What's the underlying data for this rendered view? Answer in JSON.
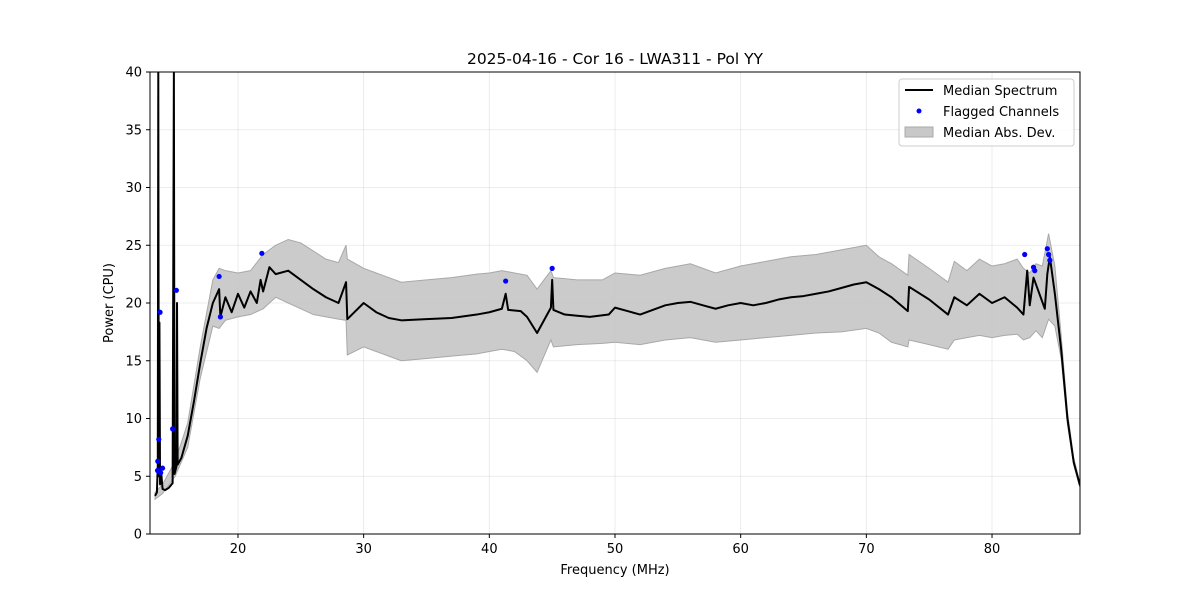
{
  "chart_data": {
    "type": "line",
    "title": "2025-04-16 - Cor 16 - LWA311 - Pol YY",
    "xlabel": "Frequency (MHz)",
    "ylabel": "Power (CPU)",
    "xlim": [
      13.0,
      87.0
    ],
    "ylim": [
      0,
      40
    ],
    "xticks": [
      20,
      30,
      40,
      50,
      60,
      70,
      80
    ],
    "yticks": [
      0,
      5,
      10,
      15,
      20,
      25,
      30,
      35,
      40
    ],
    "grid": true,
    "legend_position": "top-right",
    "legend": [
      "Median Spectrum",
      "Flagged Channels",
      "Median Abs. Dev."
    ],
    "series": [
      {
        "name": "Median Spectrum",
        "style": "line",
        "color": "#000000",
        "points": [
          [
            13.4,
            3.3
          ],
          [
            13.55,
            3.6
          ],
          [
            13.62,
            6.0
          ],
          [
            13.66,
            40.0
          ],
          [
            13.7,
            5.0
          ],
          [
            13.75,
            18.3
          ],
          [
            13.8,
            4.3
          ],
          [
            13.9,
            5.2
          ],
          [
            14.0,
            3.9
          ],
          [
            14.2,
            3.8
          ],
          [
            14.5,
            4.0
          ],
          [
            14.8,
            4.4
          ],
          [
            14.9,
            40.0
          ],
          [
            14.95,
            5.2
          ],
          [
            15.1,
            5.8
          ],
          [
            15.15,
            20.0
          ],
          [
            15.2,
            6.0
          ],
          [
            15.5,
            6.6
          ],
          [
            16.0,
            8.5
          ],
          [
            16.5,
            11.5
          ],
          [
            17.0,
            14.8
          ],
          [
            17.5,
            17.8
          ],
          [
            18.0,
            20.0
          ],
          [
            18.5,
            21.2
          ],
          [
            18.6,
            18.8
          ],
          [
            19.0,
            20.5
          ],
          [
            19.5,
            19.2
          ],
          [
            20.0,
            20.8
          ],
          [
            20.5,
            19.6
          ],
          [
            21.0,
            21.0
          ],
          [
            21.5,
            20.0
          ],
          [
            21.8,
            22.0
          ],
          [
            22.0,
            21.0
          ],
          [
            22.5,
            23.1
          ],
          [
            23.0,
            22.5
          ],
          [
            24.0,
            22.8
          ],
          [
            25.0,
            22.0
          ],
          [
            26.0,
            21.2
          ],
          [
            27.0,
            20.5
          ],
          [
            28.0,
            20.0
          ],
          [
            28.6,
            21.8
          ],
          [
            28.7,
            18.6
          ],
          [
            30.0,
            20.0
          ],
          [
            31.0,
            19.2
          ],
          [
            32.0,
            18.7
          ],
          [
            33.0,
            18.5
          ],
          [
            35.0,
            18.6
          ],
          [
            37.0,
            18.7
          ],
          [
            39.0,
            19.0
          ],
          [
            40.0,
            19.2
          ],
          [
            41.0,
            19.5
          ],
          [
            41.3,
            20.8
          ],
          [
            41.5,
            19.4
          ],
          [
            42.5,
            19.3
          ],
          [
            43.0,
            18.8
          ],
          [
            43.8,
            17.4
          ],
          [
            44.9,
            19.6
          ],
          [
            45.0,
            22.0
          ],
          [
            45.1,
            19.4
          ],
          [
            46.0,
            19.0
          ],
          [
            47.0,
            18.9
          ],
          [
            48.0,
            18.8
          ],
          [
            49.5,
            19.0
          ],
          [
            50.0,
            19.6
          ],
          [
            51.0,
            19.3
          ],
          [
            52.0,
            19.0
          ],
          [
            53.0,
            19.4
          ],
          [
            54.0,
            19.8
          ],
          [
            55.0,
            20.0
          ],
          [
            56.0,
            20.1
          ],
          [
            57.0,
            19.8
          ],
          [
            58.0,
            19.5
          ],
          [
            59.0,
            19.8
          ],
          [
            60.0,
            20.0
          ],
          [
            61.0,
            19.8
          ],
          [
            62.0,
            20.0
          ],
          [
            63.0,
            20.3
          ],
          [
            64.0,
            20.5
          ],
          [
            65.0,
            20.6
          ],
          [
            66.0,
            20.8
          ],
          [
            67.0,
            21.0
          ],
          [
            68.0,
            21.3
          ],
          [
            69.0,
            21.6
          ],
          [
            70.0,
            21.8
          ],
          [
            71.0,
            21.2
          ],
          [
            72.0,
            20.5
          ],
          [
            73.3,
            19.3
          ],
          [
            73.4,
            21.4
          ],
          [
            75.0,
            20.3
          ],
          [
            76.5,
            19.0
          ],
          [
            77.0,
            20.5
          ],
          [
            78.0,
            19.8
          ],
          [
            79.0,
            20.8
          ],
          [
            80.0,
            20.0
          ],
          [
            81.0,
            20.5
          ],
          [
            82.0,
            19.6
          ],
          [
            82.5,
            19.0
          ],
          [
            82.8,
            22.8
          ],
          [
            83.0,
            19.8
          ],
          [
            83.3,
            22.2
          ],
          [
            83.7,
            21.0
          ],
          [
            84.2,
            19.5
          ],
          [
            84.4,
            22.5
          ],
          [
            84.6,
            24.0
          ],
          [
            85.0,
            20.8
          ],
          [
            85.5,
            16.0
          ],
          [
            86.0,
            10.0
          ],
          [
            86.5,
            6.2
          ],
          [
            87.0,
            4.2
          ]
        ]
      },
      {
        "name": "Flagged Channels",
        "style": "scatter",
        "color": "#0000ff",
        "points": [
          [
            13.6,
            5.5
          ],
          [
            13.62,
            6.3
          ],
          [
            13.7,
            8.2
          ],
          [
            13.8,
            19.2
          ],
          [
            13.85,
            5.3
          ],
          [
            14.0,
            5.7
          ],
          [
            14.8,
            9.1
          ],
          [
            15.1,
            21.1
          ],
          [
            18.5,
            22.3
          ],
          [
            18.6,
            18.8
          ],
          [
            21.9,
            24.3
          ],
          [
            41.3,
            21.9
          ],
          [
            45.0,
            23.0
          ],
          [
            82.6,
            24.2
          ],
          [
            83.3,
            23.1
          ],
          [
            83.4,
            22.8
          ],
          [
            84.4,
            24.7
          ],
          [
            84.5,
            24.2
          ],
          [
            84.6,
            23.7
          ]
        ]
      },
      {
        "name": "Median Abs. Dev.",
        "style": "band",
        "color": "#c8c8c8",
        "x": [
          13.4,
          14.0,
          15.0,
          16.0,
          17.0,
          18.0,
          18.5,
          19.0,
          20.0,
          21.0,
          22.0,
          23.0,
          24.0,
          25.0,
          26.0,
          27.0,
          28.0,
          28.6,
          28.7,
          30.0,
          31.0,
          32.0,
          33.0,
          35.0,
          37.0,
          39.0,
          40.0,
          41.0,
          42.0,
          43.0,
          43.8,
          44.9,
          45.1,
          47.0,
          49.0,
          50.0,
          52.0,
          54.0,
          56.0,
          58.0,
          60.0,
          62.0,
          64.0,
          66.0,
          68.0,
          70.0,
          71.0,
          72.0,
          73.3,
          73.4,
          75.0,
          76.5,
          77.0,
          78.0,
          79.0,
          80.0,
          81.0,
          82.0,
          82.5,
          83.0,
          83.5,
          84.0,
          84.5,
          85.0,
          85.5,
          86.0,
          86.5,
          87.0
        ],
        "lower": [
          3.0,
          3.5,
          5.0,
          7.5,
          13.5,
          18.0,
          17.8,
          18.5,
          18.8,
          19.0,
          19.5,
          20.5,
          20.0,
          19.5,
          19.0,
          18.8,
          18.6,
          18.5,
          15.5,
          16.2,
          15.8,
          15.4,
          15.0,
          15.2,
          15.4,
          15.6,
          15.8,
          16.0,
          15.8,
          15.0,
          14.0,
          16.8,
          16.2,
          16.4,
          16.5,
          16.6,
          16.4,
          16.8,
          17.0,
          16.6,
          16.8,
          17.0,
          17.2,
          17.4,
          17.5,
          17.8,
          17.4,
          16.6,
          16.2,
          16.8,
          16.4,
          16.0,
          16.8,
          17.0,
          17.2,
          17.0,
          17.2,
          17.3,
          16.8,
          17.0,
          17.6,
          17.0,
          18.6,
          18.0,
          15.2,
          9.5,
          6.0,
          4.0
        ],
        "upper": [
          3.6,
          4.3,
          6.3,
          9.6,
          16.2,
          22.0,
          23.0,
          22.8,
          22.6,
          22.8,
          24.2,
          25.0,
          25.5,
          25.2,
          24.5,
          23.8,
          23.5,
          25.0,
          23.8,
          23.0,
          22.6,
          22.2,
          21.8,
          22.0,
          22.2,
          22.5,
          22.6,
          22.8,
          22.6,
          22.4,
          21.2,
          22.8,
          22.2,
          22.0,
          22.0,
          22.6,
          22.4,
          23.0,
          23.4,
          22.6,
          23.2,
          23.6,
          24.0,
          24.2,
          24.6,
          25.0,
          24.0,
          23.4,
          22.4,
          24.2,
          23.0,
          21.8,
          23.6,
          22.8,
          23.8,
          23.2,
          23.4,
          23.8,
          23.0,
          22.6,
          23.4,
          23.2,
          26.0,
          23.2,
          17.2,
          10.6,
          6.6,
          4.4
        ]
      }
    ]
  }
}
